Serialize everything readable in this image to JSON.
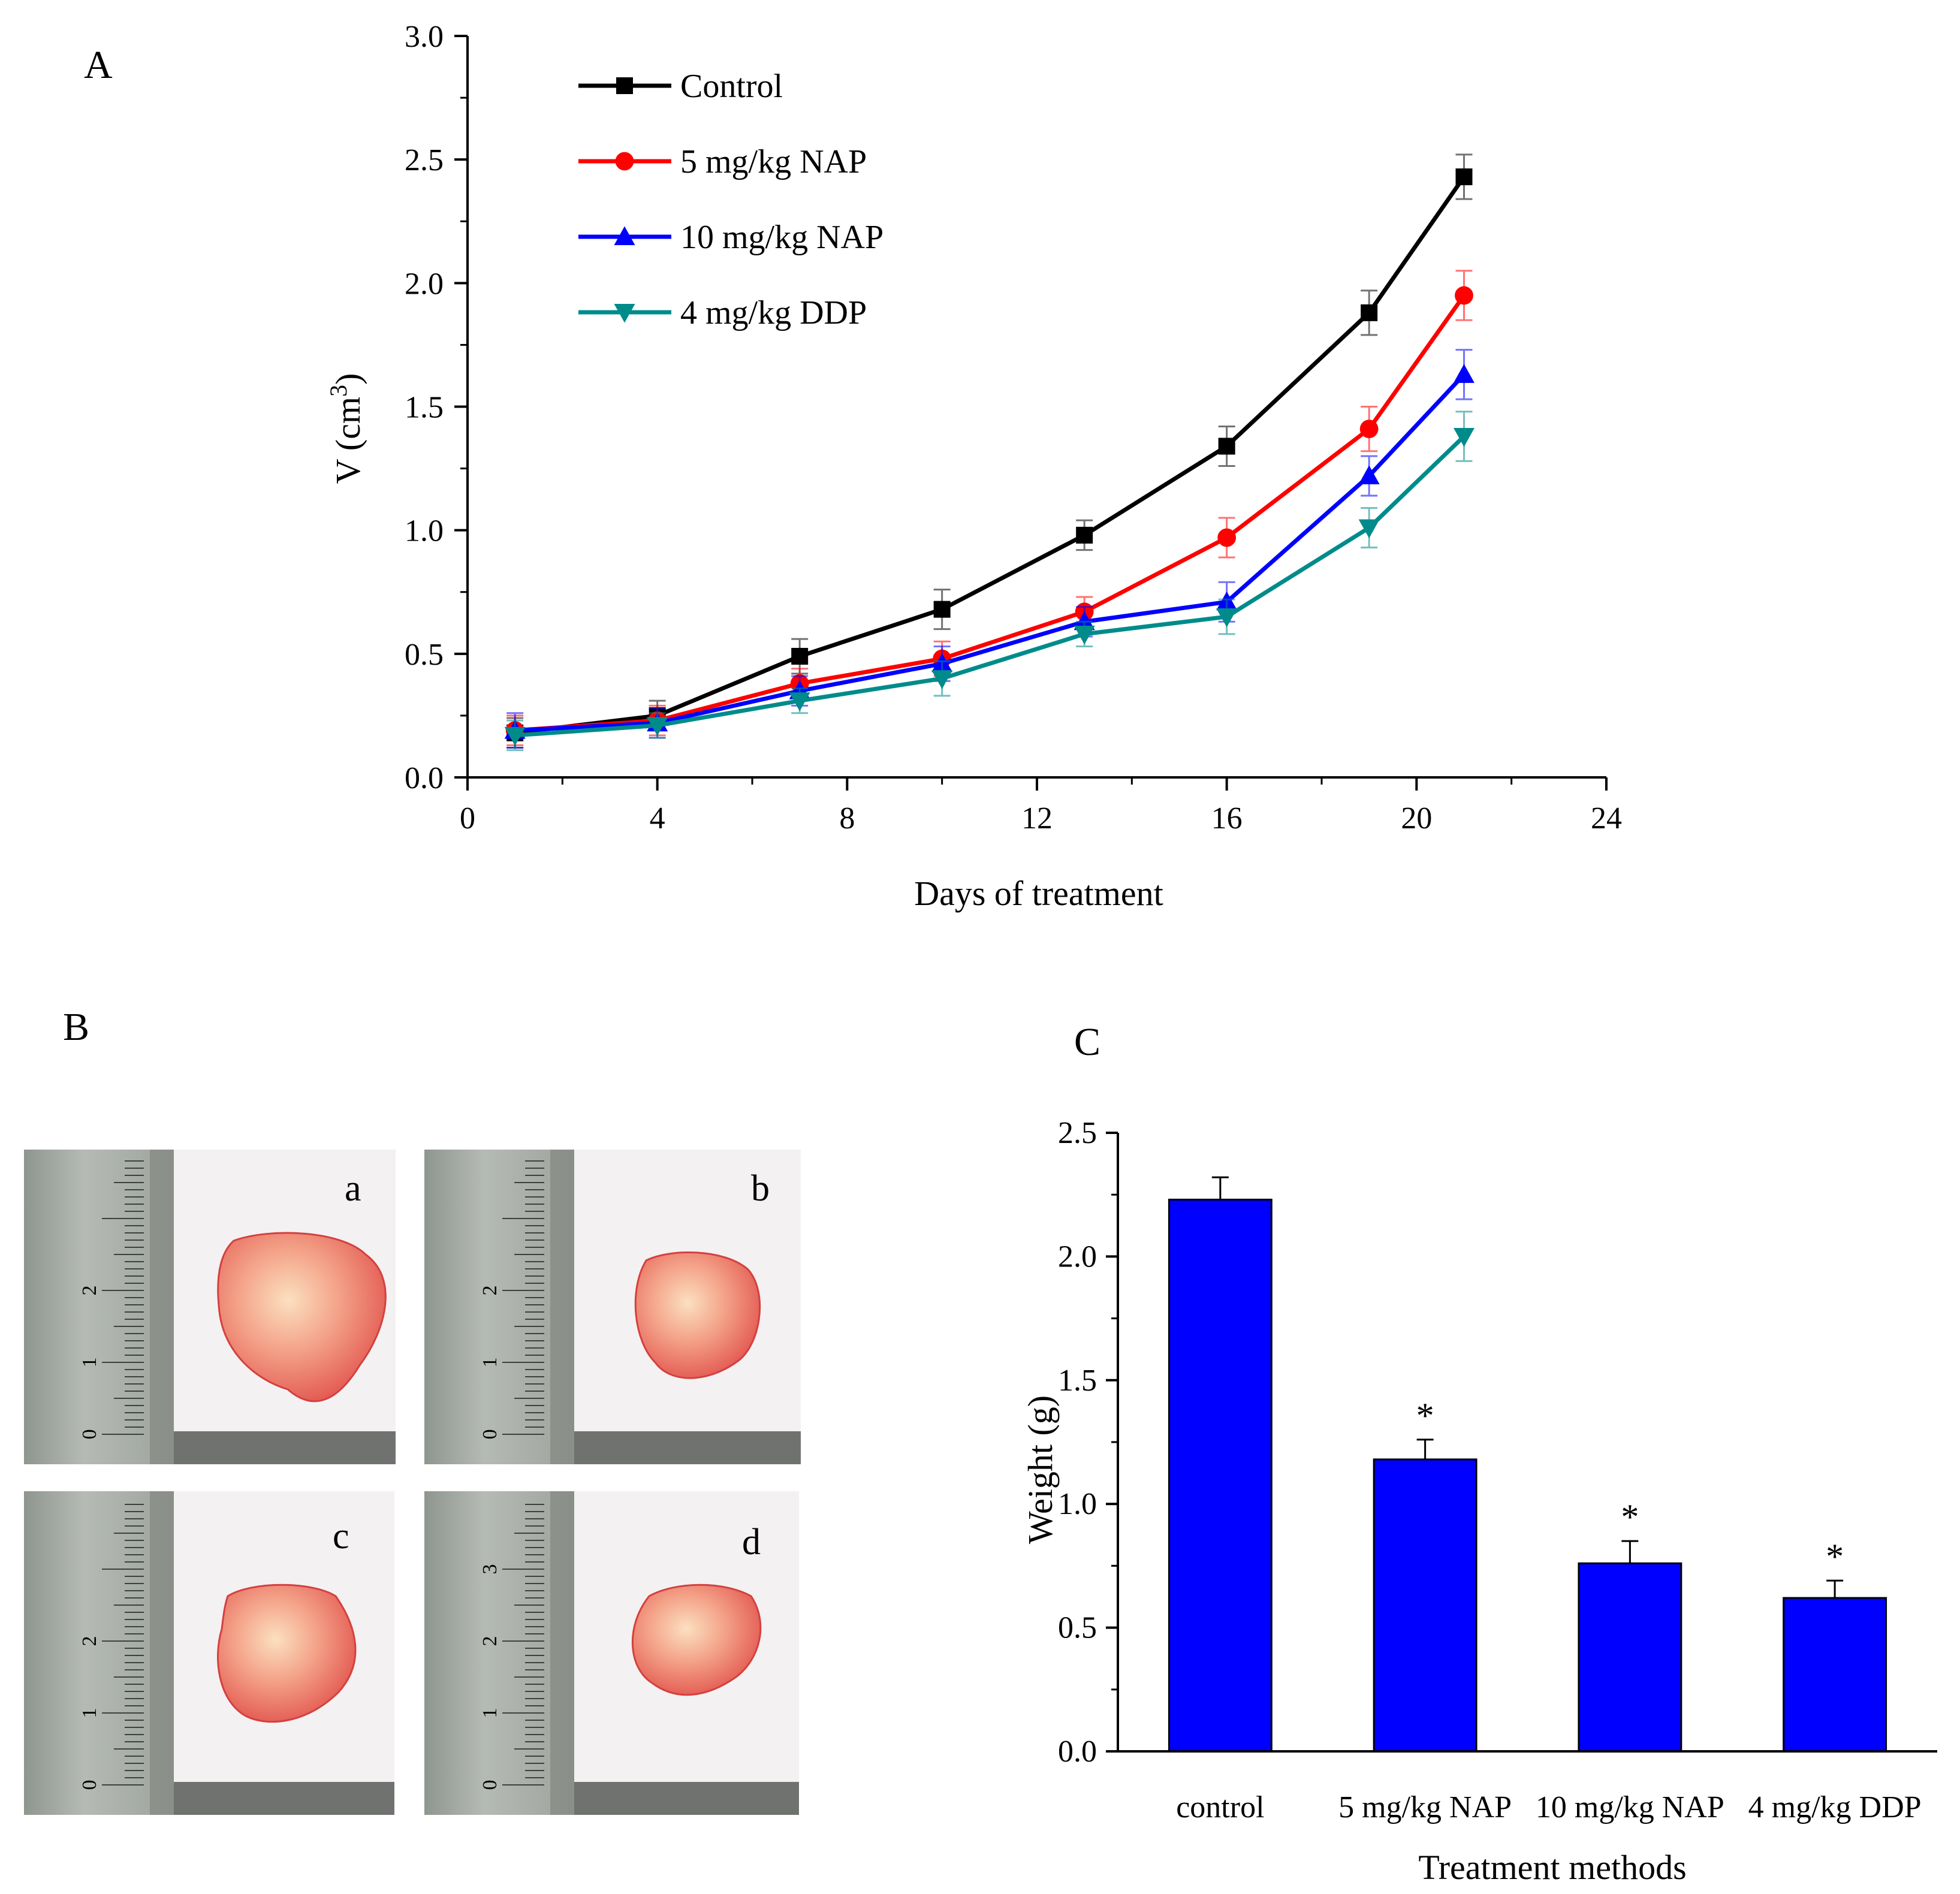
{
  "panels": {
    "a": "A",
    "b": "B",
    "c": "C"
  },
  "chart_data": [
    {
      "type": "line",
      "panel": "A",
      "xlabel": "Days of treatment",
      "ylabel_main": "V (cm",
      "ylabel_sup": "3",
      "ylabel_end": ")",
      "xlim": [
        0,
        24
      ],
      "ylim": [
        0,
        3
      ],
      "x_ticks": [
        0,
        4,
        8,
        12,
        16,
        20,
        24
      ],
      "x_tick_labels": [
        "0",
        "4",
        "8",
        "12",
        "16",
        "20",
        "24"
      ],
      "y_ticks": [
        0,
        0.5,
        1,
        1.5,
        2,
        2.5,
        3
      ],
      "y_tick_labels": [
        "0.0",
        "0.5",
        "1.0",
        "1.5",
        "2.0",
        "2.5",
        "3.0"
      ],
      "legend_position": "top-left",
      "x": [
        1,
        4,
        7,
        10,
        13,
        16,
        19,
        21
      ],
      "series": [
        {
          "name": "Control",
          "color": "#000000",
          "marker": "square",
          "values": [
            0.18,
            0.25,
            0.49,
            0.68,
            0.98,
            1.34,
            1.88,
            2.43
          ],
          "errors": [
            0.06,
            0.06,
            0.07,
            0.08,
            0.06,
            0.08,
            0.09,
            0.09
          ]
        },
        {
          "name": "5 mg/kg NAP",
          "color": "#ff0000",
          "marker": "circle",
          "values": [
            0.19,
            0.23,
            0.38,
            0.48,
            0.67,
            0.97,
            1.41,
            1.95
          ],
          "errors": [
            0.06,
            0.06,
            0.06,
            0.07,
            0.06,
            0.08,
            0.09,
            0.1
          ]
        },
        {
          "name": "10 mg/kg NAP",
          "color": "#0000ff",
          "marker": "triangle-up",
          "values": [
            0.19,
            0.22,
            0.35,
            0.46,
            0.63,
            0.71,
            1.22,
            1.63
          ],
          "errors": [
            0.07,
            0.06,
            0.06,
            0.07,
            0.06,
            0.08,
            0.08,
            0.1
          ]
        },
        {
          "name": "4 mg/kg DDP",
          "color": "#008b8b",
          "marker": "triangle-down",
          "values": [
            0.17,
            0.21,
            0.31,
            0.4,
            0.58,
            0.65,
            1.01,
            1.38
          ],
          "errors": [
            0.06,
            0.05,
            0.05,
            0.07,
            0.05,
            0.07,
            0.08,
            0.1
          ]
        }
      ]
    },
    {
      "type": "bar",
      "panel": "C",
      "xlabel": "Treatment methods",
      "ylabel": "Weight (g)",
      "ylim": [
        0,
        2.5
      ],
      "y_ticks": [
        0,
        0.5,
        1,
        1.5,
        2,
        2.5
      ],
      "y_tick_labels": [
        "0.0",
        "0.5",
        "1.0",
        "1.5",
        "2.0",
        "2.5"
      ],
      "categories": [
        "control",
        "5 mg/kg NAP",
        "10 mg/kg NAP",
        "4 mg/kg DDP"
      ],
      "values": [
        2.23,
        1.18,
        0.76,
        0.62
      ],
      "errors": [
        0.09,
        0.08,
        0.09,
        0.07
      ],
      "significance": [
        "",
        "*",
        "*",
        "*"
      ],
      "bar_color": "#0000ff"
    }
  ],
  "photos": {
    "panel": "B",
    "letters": [
      "a",
      "b",
      "c",
      "d"
    ],
    "ruler_marks": [
      [
        "0",
        "1",
        "2"
      ],
      [
        "0",
        "1",
        "2"
      ],
      [
        "0",
        "1",
        "2"
      ],
      [
        "0",
        "1",
        "2",
        "3"
      ]
    ]
  }
}
